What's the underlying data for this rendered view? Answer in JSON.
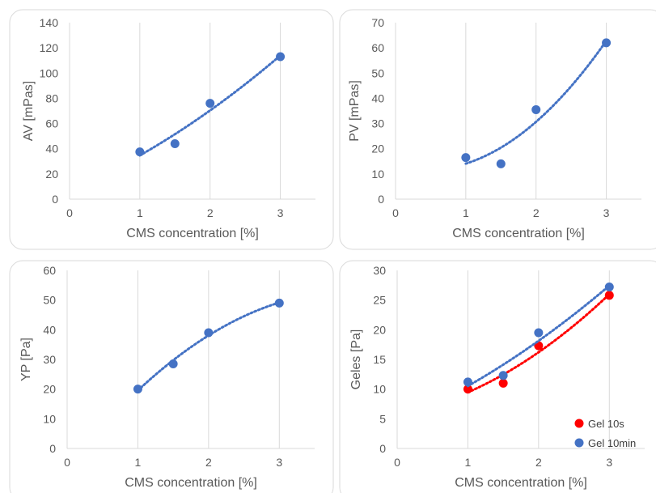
{
  "colors": {
    "blue": "#4472c4",
    "red": "#ff0000"
  },
  "chart_data": [
    {
      "type": "scatter",
      "xlabel": "CMS concentration [%]",
      "ylabel": "AV [mPas]",
      "xlim": [
        0,
        3.5
      ],
      "ylim": [
        0,
        140
      ],
      "xticks": [
        "0",
        "1",
        "2",
        "3"
      ],
      "yticks": [
        "0",
        "20",
        "40",
        "60",
        "80",
        "100",
        "120",
        "140"
      ],
      "grid": "vertical",
      "series": [
        {
          "color": "#4472c4",
          "trendline": "polynomial",
          "x": [
            1,
            1.5,
            2,
            3
          ],
          "y": [
            37.5,
            44,
            76,
            113
          ]
        }
      ]
    },
    {
      "type": "scatter",
      "xlabel": "CMS concentration [%]",
      "ylabel": "PV [mPas]",
      "xlim": [
        0,
        3.5
      ],
      "ylim": [
        0,
        70
      ],
      "xticks": [
        "0",
        "1",
        "2",
        "3"
      ],
      "yticks": [
        "0",
        "10",
        "20",
        "30",
        "40",
        "50",
        "60",
        "70"
      ],
      "grid": "vertical",
      "series": [
        {
          "color": "#4472c4",
          "trendline": "polynomial",
          "x": [
            1,
            1.5,
            2,
            3
          ],
          "y": [
            16.5,
            14,
            35.5,
            62
          ]
        }
      ]
    },
    {
      "type": "scatter",
      "xlabel": "CMS concentration [%]",
      "ylabel": "YP [Pa]",
      "xlim": [
        0,
        3.5
      ],
      "ylim": [
        0,
        60
      ],
      "xticks": [
        "0",
        "1",
        "2",
        "3"
      ],
      "yticks": [
        "0",
        "10",
        "20",
        "30",
        "40",
        "50",
        "60"
      ],
      "grid": "vertical",
      "series": [
        {
          "color": "#4472c4",
          "trendline": "polynomial",
          "x": [
            1,
            1.5,
            2,
            3
          ],
          "y": [
            20,
            28.5,
            39,
            49
          ]
        }
      ]
    },
    {
      "type": "scatter",
      "xlabel": "CMS concentration [%]",
      "ylabel": "Geles [Pa]",
      "xlim": [
        0,
        3.5
      ],
      "ylim": [
        0,
        30
      ],
      "xticks": [
        "0",
        "1",
        "2",
        "3"
      ],
      "yticks": [
        "0",
        "5",
        "10",
        "15",
        "20",
        "25",
        "30"
      ],
      "grid": "vertical",
      "legend": "bottom-right",
      "series": [
        {
          "name": "Gel 10s",
          "color": "#ff0000",
          "trendline": "polynomial",
          "x": [
            1,
            1.5,
            2,
            3
          ],
          "y": [
            10,
            11,
            17.3,
            25.8
          ]
        },
        {
          "name": "Gel 10min",
          "color": "#4472c4",
          "trendline": "polynomial",
          "x": [
            1,
            1.5,
            2,
            3
          ],
          "y": [
            11.2,
            12.3,
            19.5,
            27.2
          ]
        }
      ]
    }
  ]
}
